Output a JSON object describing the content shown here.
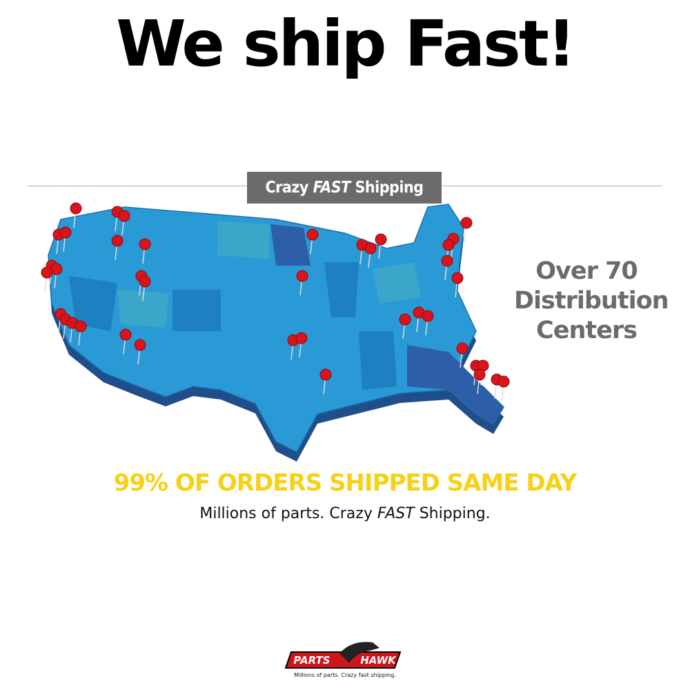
{
  "header": {
    "title": "We ship Fast!"
  },
  "badge": {
    "before": "Crazy",
    "emphasis": "FAST",
    "after": "Shipping"
  },
  "centers": {
    "lines": [
      "Over 70",
      "Distribution",
      "Centers"
    ]
  },
  "headline": "99% OF ORDERS SHIPPED SAME DAY",
  "tagline": {
    "before": "Millions of parts. Crazy",
    "emphasis": "FAST",
    "after": "Shipping."
  },
  "logo": {
    "left": "PARTS",
    "right": "HAWK",
    "slogan": "Millions of parts. Crazy fast shipping."
  }
}
